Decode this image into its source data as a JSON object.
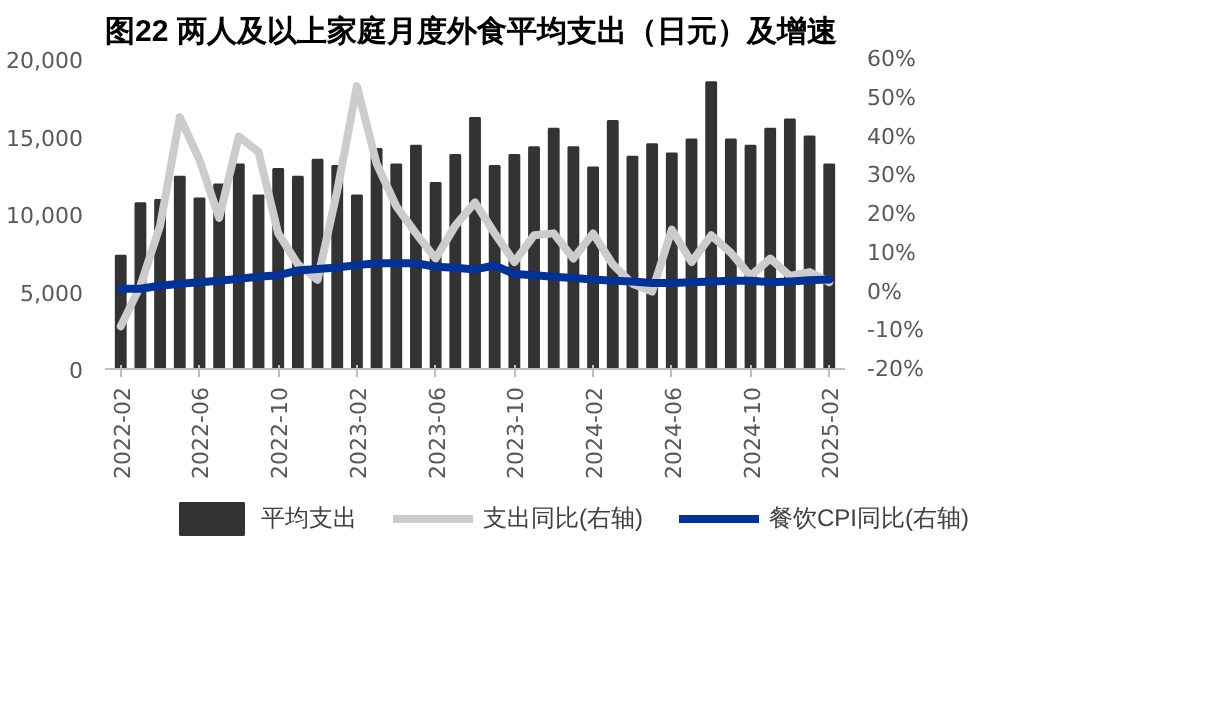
{
  "chart_data": {
    "type": "bar",
    "title": "图22 两人及以上家庭月度外食平均支出（日元）及增速",
    "categories": [
      "2022-02",
      null,
      null,
      null,
      "2022-06",
      null,
      null,
      null,
      "2022-10",
      null,
      null,
      null,
      "2023-02",
      null,
      null,
      null,
      "2023-06",
      null,
      null,
      null,
      "2023-10",
      null,
      null,
      null,
      "2024-02",
      null,
      null,
      null,
      "2024-06",
      null,
      null,
      null,
      "2024-10",
      null,
      null,
      null,
      "2025-02"
    ],
    "series": [
      {
        "name": "平均支出",
        "type": "bar",
        "color": "#333333",
        "values": [
          7300,
          10700,
          10900,
          12400,
          11000,
          11900,
          13200,
          11200,
          12900,
          12400,
          13500,
          13100,
          11200,
          14200,
          13200,
          14400,
          12000,
          13800,
          16200,
          13100,
          13800,
          14300,
          15500,
          14300,
          13000,
          16000,
          13700,
          14500,
          13900,
          14800,
          18500,
          14800,
          14400,
          15500,
          16100,
          15000,
          13200
        ]
      },
      {
        "name": "支出同比(右轴)",
        "type": "line",
        "axis": "y2",
        "color": "#cccccc",
        "values": [
          -9,
          1.5,
          17,
          45,
          34,
          19,
          40,
          36,
          15,
          7,
          3,
          26,
          53,
          33,
          22,
          15,
          8.5,
          17,
          23,
          15,
          7.6,
          14.5,
          15,
          8.5,
          15,
          7,
          2,
          0,
          16,
          7.6,
          14.5,
          10,
          4,
          8.5,
          4,
          5,
          2.4
        ]
      },
      {
        "name": "餐饮CPI同比(右轴)",
        "type": "line",
        "axis": "y2",
        "color": "#003399",
        "values": [
          0.7,
          0.7,
          1.5,
          2.0,
          2.4,
          2.8,
          3.3,
          3.8,
          4.2,
          5.4,
          5.8,
          6.2,
          6.8,
          7.3,
          7.3,
          7.3,
          6.4,
          6.1,
          5.7,
          6.7,
          4.5,
          4.2,
          3.8,
          3.5,
          3.1,
          2.8,
          2.6,
          2.2,
          2.2,
          2.4,
          2.6,
          2.8,
          2.8,
          2.4,
          2.6,
          2.9,
          3.1
        ]
      }
    ],
    "ylim": [
      0,
      20000
    ],
    "yticks": [
      0,
      {
        "value": 5000,
        "label": "5,000"
      },
      {
        "value": 10000,
        "label": "10,000"
      },
      {
        "value": 15000,
        "label": "15,000"
      },
      {
        "value": 20000,
        "label": "20,000"
      }
    ],
    "y2lim": [
      -20,
      60
    ],
    "y2ticks": [
      {
        "value": -20,
        "label": "-20%"
      },
      {
        "value": -10,
        "label": "-10%"
      },
      {
        "value": 0,
        "label": "0%"
      },
      {
        "value": 10,
        "label": "10%"
      },
      {
        "value": 20,
        "label": "20%"
      },
      {
        "value": 30,
        "label": "30%"
      },
      {
        "value": 40,
        "label": "40%"
      },
      {
        "value": 50,
        "label": "50%"
      },
      {
        "value": 60,
        "label": "60%"
      }
    ],
    "legend": "bottom",
    "grid": false
  }
}
